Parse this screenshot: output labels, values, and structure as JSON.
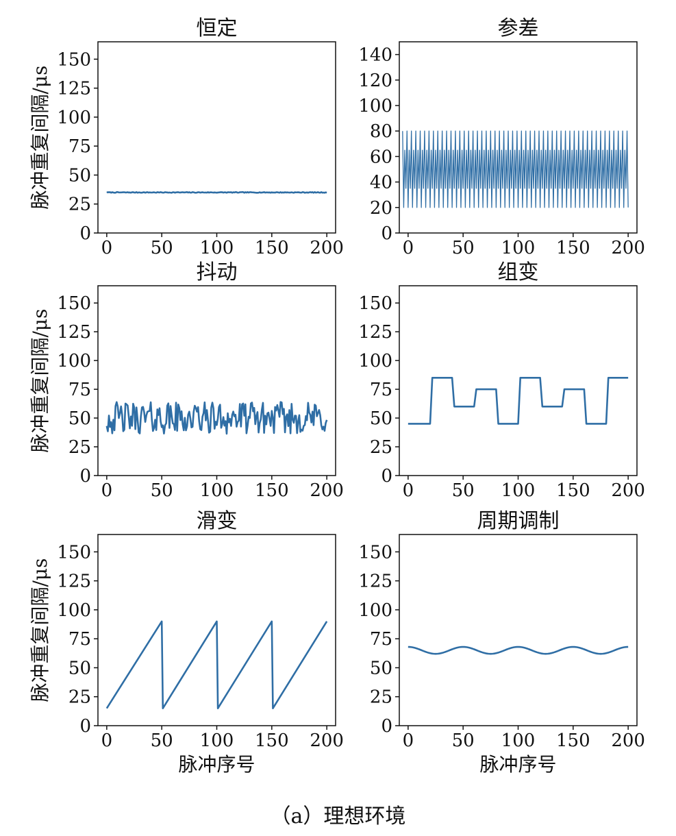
{
  "figure": {
    "caption": "（a）理想环境",
    "line_color": "#2f6ea5"
  },
  "chart_data": [
    {
      "type": "line",
      "title": "恒定",
      "xlabel": "",
      "ylabel": "脉冲重复间隔/μs",
      "xlim": [
        -8,
        208
      ],
      "ylim": [
        0,
        165
      ],
      "xticks": [
        0,
        50,
        100,
        150,
        200
      ],
      "yticks": [
        0,
        25,
        50,
        75,
        100,
        125,
        150
      ],
      "series": [
        {
          "pattern": "constant",
          "x_range": [
            0,
            200
          ],
          "value": 35,
          "noise": 0.6
        }
      ]
    },
    {
      "type": "line",
      "title": "参差",
      "xlabel": "",
      "ylabel": "",
      "xlim": [
        -8,
        208
      ],
      "ylim": [
        0,
        150
      ],
      "xticks": [
        0,
        50,
        100,
        150,
        200
      ],
      "yticks": [
        0,
        20,
        40,
        60,
        80,
        100,
        120,
        140
      ],
      "series": [
        {
          "pattern": "staggered",
          "x_range": [
            -5,
            200
          ],
          "cycle": [
            80,
            20,
            65,
            35
          ],
          "thin": true
        }
      ]
    },
    {
      "type": "line",
      "title": "抖动",
      "xlabel": "",
      "ylabel": "脉冲重复间隔/μs",
      "xlim": [
        -8,
        208
      ],
      "ylim": [
        0,
        165
      ],
      "xticks": [
        0,
        50,
        100,
        150,
        200
      ],
      "yticks": [
        0,
        25,
        50,
        75,
        100,
        125,
        150
      ],
      "series": [
        {
          "pattern": "jitter",
          "x_range": [
            0,
            200
          ],
          "center": 50,
          "amplitude": 14
        }
      ]
    },
    {
      "type": "line",
      "title": "组变",
      "xlabel": "",
      "ylabel": "",
      "xlim": [
        -8,
        208
      ],
      "ylim": [
        0,
        165
      ],
      "xticks": [
        0,
        50,
        100,
        150,
        200
      ],
      "yticks": [
        0,
        25,
        50,
        75,
        100,
        125,
        150
      ],
      "series": [
        {
          "pattern": "steps",
          "points": [
            [
              0,
              45
            ],
            [
              20,
              45
            ],
            [
              22,
              85
            ],
            [
              40,
              85
            ],
            [
              42,
              60
            ],
            [
              60,
              60
            ],
            [
              62,
              75
            ],
            [
              80,
              75
            ],
            [
              82,
              45
            ],
            [
              100,
              45
            ],
            [
              102,
              85
            ],
            [
              120,
              85
            ],
            [
              122,
              60
            ],
            [
              140,
              60
            ],
            [
              142,
              75
            ],
            [
              160,
              75
            ],
            [
              162,
              45
            ],
            [
              180,
              45
            ],
            [
              182,
              85
            ],
            [
              200,
              85
            ]
          ]
        }
      ]
    },
    {
      "type": "line",
      "title": "滑变",
      "xlabel": "脉冲序号",
      "ylabel": "脉冲重复间隔/μs",
      "xlim": [
        -8,
        208
      ],
      "ylim": [
        0,
        165
      ],
      "xticks": [
        0,
        50,
        100,
        150,
        200
      ],
      "yticks": [
        0,
        25,
        50,
        75,
        100,
        125,
        150
      ],
      "series": [
        {
          "pattern": "sawtooth",
          "points": [
            [
              0,
              15
            ],
            [
              50,
              90
            ],
            [
              51,
              15
            ],
            [
              100,
              90
            ],
            [
              101,
              15
            ],
            [
              150,
              90
            ],
            [
              151,
              15
            ],
            [
              200,
              90
            ]
          ]
        }
      ]
    },
    {
      "type": "line",
      "title": "周期调制",
      "xlabel": "脉冲序号",
      "ylabel": "",
      "xlim": [
        -8,
        208
      ],
      "ylim": [
        0,
        165
      ],
      "xticks": [
        0,
        50,
        100,
        150,
        200
      ],
      "yticks": [
        0,
        25,
        50,
        75,
        100,
        125,
        150
      ],
      "series": [
        {
          "pattern": "sine",
          "x_range": [
            0,
            200
          ],
          "mean": 65,
          "amplitude": 3,
          "period": 50
        }
      ]
    }
  ]
}
